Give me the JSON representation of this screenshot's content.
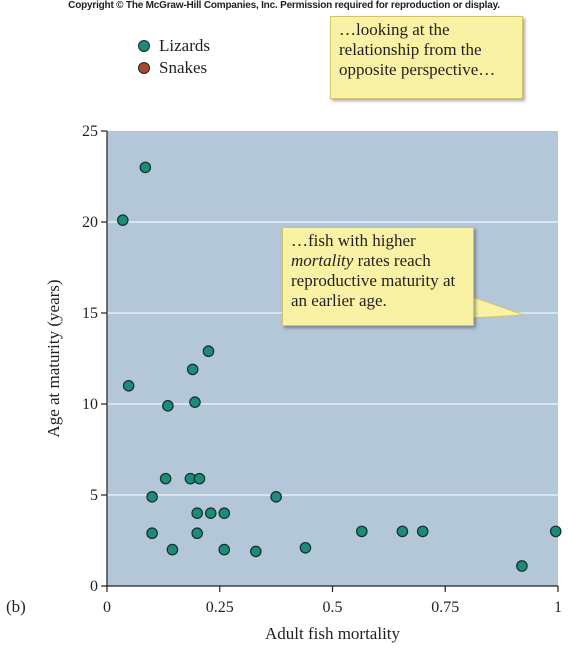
{
  "header": {
    "copyright": "Copyright © The McGraw-Hill Companies, Inc. Permission required for reproduction or display."
  },
  "legend": [
    {
      "label": "Lizards",
      "color": "#1d8a7a"
    },
    {
      "label": "Snakes",
      "color": "#a8472a"
    }
  ],
  "callouts": {
    "top": [
      "…looking at the",
      "relationship from the",
      "opposite perspective…"
    ],
    "middle": {
      "line1": "…fish with higher",
      "line2_italic": "mortality",
      "line2_rest": " rates reach",
      "line3": "reproductive maturity at",
      "line4": "an earlier age."
    }
  },
  "panel_label": "(b)",
  "colors": {
    "plot_bg": "#b3c7d8",
    "grid": "#e6eef5",
    "point": "#1d8a7a",
    "callout_bg": "#f9f1a3"
  },
  "chart_data": {
    "type": "scatter",
    "xlabel": "Adult fish mortality",
    "ylabel": "Age at maturity (years)",
    "xlim": [
      0,
      1
    ],
    "ylim": [
      0,
      25
    ],
    "xticks": [
      "0",
      "0.25",
      "0.5",
      "0.75",
      "1"
    ],
    "yticks": [
      "0",
      "5",
      "10",
      "15",
      "20",
      "25"
    ],
    "grid": "horizontal",
    "series": [
      {
        "name": "Lizards",
        "color": "#1d8a7a",
        "points": [
          [
            0.035,
            20.1
          ],
          [
            0.085,
            23.0
          ],
          [
            0.048,
            11.0
          ],
          [
            0.135,
            9.9
          ],
          [
            0.19,
            11.9
          ],
          [
            0.195,
            10.1
          ],
          [
            0.225,
            12.9
          ],
          [
            0.13,
            5.9
          ],
          [
            0.185,
            5.9
          ],
          [
            0.205,
            5.9
          ],
          [
            0.1,
            4.9
          ],
          [
            0.2,
            4.0
          ],
          [
            0.23,
            4.0
          ],
          [
            0.26,
            4.0
          ],
          [
            0.375,
            4.9
          ],
          [
            0.1,
            2.9
          ],
          [
            0.2,
            2.9
          ],
          [
            0.145,
            2.0
          ],
          [
            0.26,
            2.0
          ],
          [
            0.33,
            1.9
          ],
          [
            0.44,
            2.1
          ],
          [
            0.565,
            3.0
          ],
          [
            0.655,
            3.0
          ],
          [
            0.7,
            3.0
          ],
          [
            0.92,
            1.1
          ],
          [
            0.995,
            3.0
          ]
        ]
      }
    ]
  }
}
